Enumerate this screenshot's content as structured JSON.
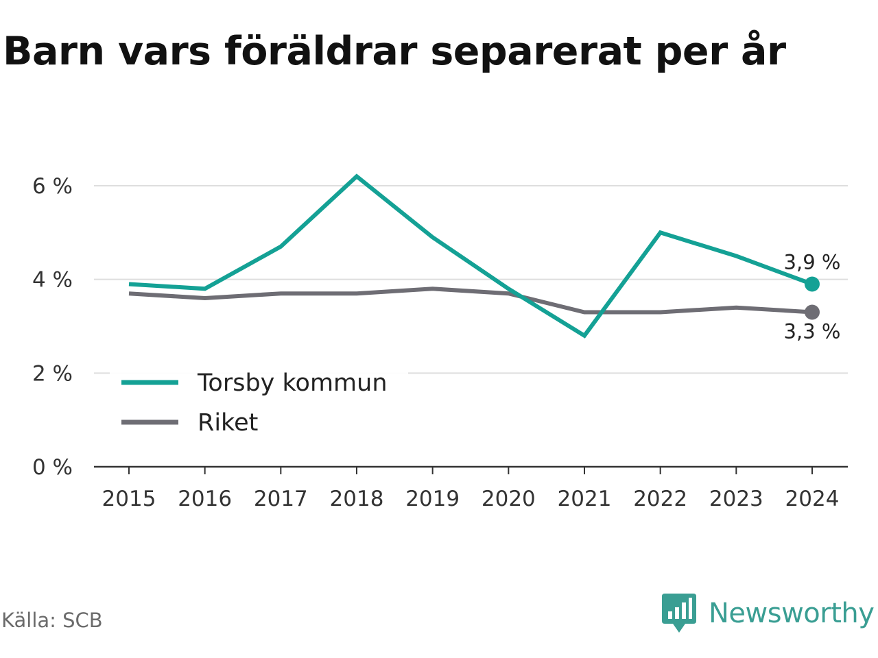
{
  "title": "Barn vars föräldrar separerat per år",
  "source": "Källa: SCB",
  "brand": {
    "name": "Newsworthy",
    "icon": "newsworthy-logo-icon",
    "color": "#3a9e93"
  },
  "chart_data": {
    "type": "line",
    "title": "Barn vars föräldrar separerat per år",
    "xlabel": "",
    "ylabel": "",
    "x": [
      "2015",
      "2016",
      "2017",
      "2018",
      "2019",
      "2020",
      "2021",
      "2022",
      "2023",
      "2024"
    ],
    "ylim": [
      0,
      6
    ],
    "yticks": [
      0,
      2,
      4,
      6
    ],
    "ytick_labels": [
      "0 %",
      "2 %",
      "4 %",
      "6 %"
    ],
    "grid": true,
    "legend_position": "bottom-left",
    "series": [
      {
        "name": "Torsby kommun",
        "color": "#14a195",
        "values": [
          3.9,
          3.8,
          4.7,
          6.2,
          4.9,
          3.8,
          2.8,
          5.0,
          4.5,
          3.9
        ],
        "end_label": "3,9 %"
      },
      {
        "name": "Riket",
        "color": "#6e6d74",
        "values": [
          3.7,
          3.6,
          3.7,
          3.7,
          3.8,
          3.7,
          3.3,
          3.3,
          3.4,
          3.3
        ],
        "end_label": "3,3 %"
      }
    ]
  }
}
